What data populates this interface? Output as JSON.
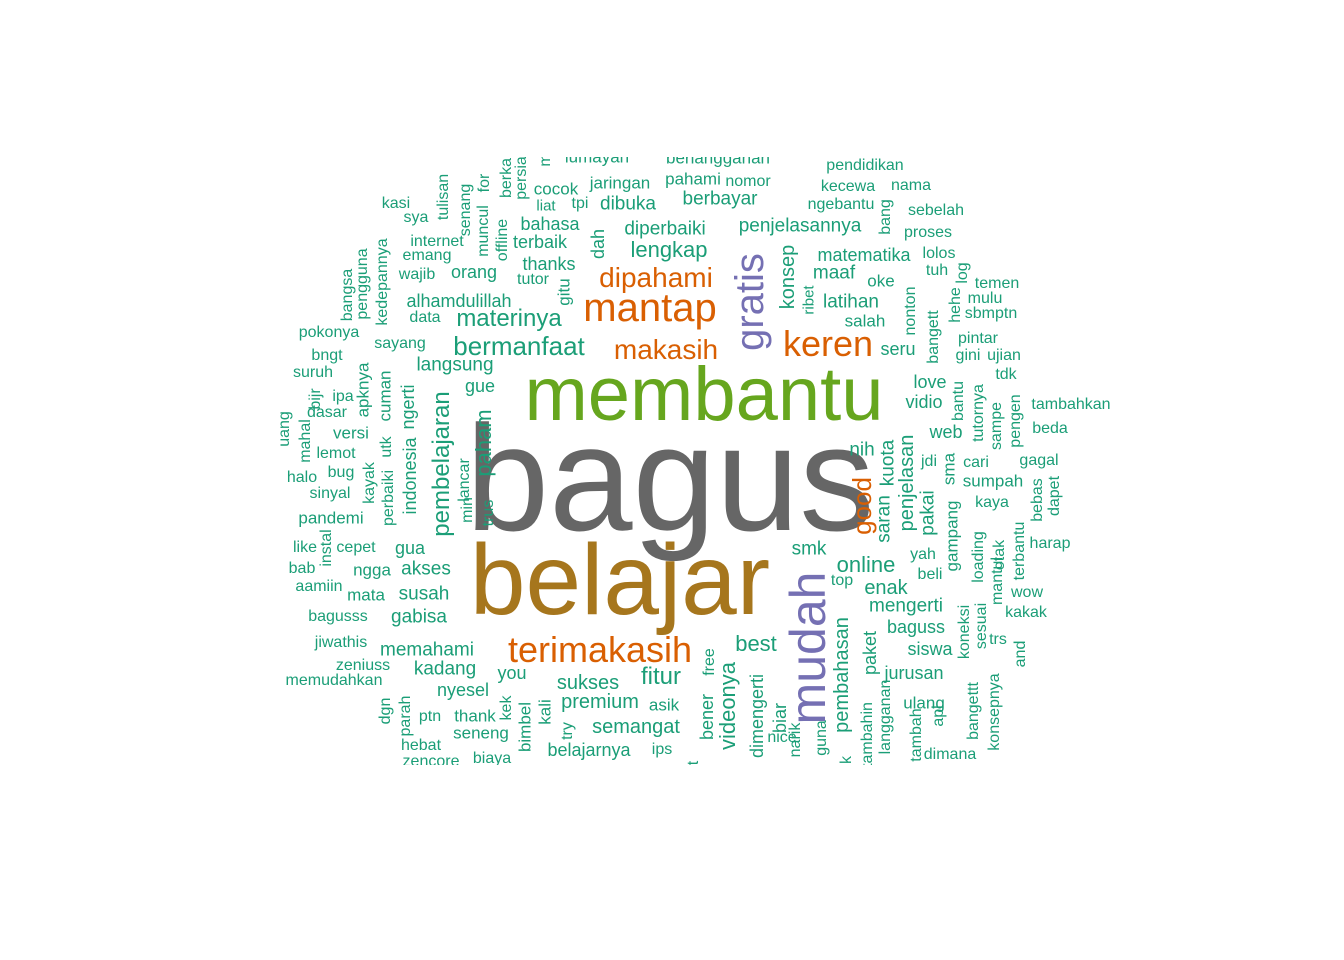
{
  "palette": {
    "teal": "#1b9e77",
    "orange": "#d95f02",
    "purple": "#7570b3",
    "green": "#66a61e",
    "olive": "#a6761d",
    "gray": "#666666"
  },
  "words": [
    {
      "text": "bagus",
      "color": "gray"
    },
    {
      "text": "belajar",
      "color": "olive"
    },
    {
      "text": "membantu",
      "color": "green"
    },
    {
      "text": "mudah",
      "color": "purple"
    },
    {
      "text": "gratis",
      "color": "purple"
    },
    {
      "text": "mantap",
      "color": "orange"
    },
    {
      "text": "terimakasih",
      "color": "orange"
    },
    {
      "text": "keren",
      "color": "orange"
    },
    {
      "text": "makasih",
      "color": "orange"
    },
    {
      "text": "dipahami",
      "color": "orange"
    },
    {
      "text": "good",
      "color": "orange"
    },
    {
      "text": "bermanfaat",
      "color": "teal"
    },
    {
      "text": "materinya",
      "color": "teal"
    },
    {
      "text": "lengkap",
      "color": "teal"
    },
    {
      "text": "pembelajaran",
      "color": "teal"
    },
    {
      "text": "fitur",
      "color": "teal"
    },
    {
      "text": "best",
      "color": "teal"
    },
    {
      "text": "online",
      "color": "teal"
    },
    {
      "text": "pembahasan",
      "color": "teal"
    },
    {
      "text": "videonya",
      "color": "teal"
    },
    {
      "text": "paham",
      "color": "teal"
    },
    {
      "text": "penjelasan",
      "color": "teal"
    },
    {
      "text": "semangat",
      "color": "teal"
    },
    {
      "text": "premium",
      "color": "teal"
    },
    {
      "text": "sukses",
      "color": "teal"
    },
    {
      "text": "enak",
      "color": "teal"
    },
    {
      "text": "konsep",
      "color": "teal"
    },
    {
      "text": "penjelasannya",
      "color": "teal"
    },
    {
      "text": "diperbaiki",
      "color": "teal"
    },
    {
      "text": "langsung",
      "color": "teal"
    },
    {
      "text": "memahami",
      "color": "teal"
    },
    {
      "text": "susah",
      "color": "teal"
    },
    {
      "text": "akses",
      "color": "teal"
    },
    {
      "text": "gabisa",
      "color": "teal"
    },
    {
      "text": "kadang",
      "color": "teal"
    },
    {
      "text": "mengerti",
      "color": "teal"
    },
    {
      "text": "latihan",
      "color": "teal"
    },
    {
      "text": "maaf",
      "color": "teal"
    },
    {
      "text": "nih",
      "color": "teal"
    },
    {
      "text": "smk",
      "color": "teal"
    },
    {
      "text": "kuota",
      "color": "teal"
    },
    {
      "text": "saran",
      "color": "teal"
    },
    {
      "text": "pakai",
      "color": "teal"
    },
    {
      "text": "matematika",
      "color": "teal"
    },
    {
      "text": "dibuka",
      "color": "teal"
    },
    {
      "text": "berbayar",
      "color": "teal"
    },
    {
      "text": "bahasa",
      "color": "teal"
    },
    {
      "text": "terbaik",
      "color": "teal"
    },
    {
      "text": "thanks",
      "color": "teal"
    },
    {
      "text": "orang",
      "color": "teal"
    },
    {
      "text": "alhamdulillah",
      "color": "teal"
    },
    {
      "text": "seru",
      "color": "teal"
    },
    {
      "text": "vidio",
      "color": "teal"
    },
    {
      "text": "web",
      "color": "teal"
    },
    {
      "text": "love",
      "color": "teal"
    },
    {
      "text": "gua",
      "color": "teal"
    },
    {
      "text": "gue",
      "color": "teal"
    },
    {
      "text": "indonesia",
      "color": "teal"
    },
    {
      "text": "ngerti",
      "color": "teal"
    },
    {
      "text": "dah",
      "color": "teal"
    },
    {
      "text": "gitu",
      "color": "teal"
    },
    {
      "text": "baguss",
      "color": "teal"
    },
    {
      "text": "jurusan",
      "color": "teal"
    },
    {
      "text": "paket",
      "color": "teal"
    },
    {
      "text": "siswa",
      "color": "teal"
    },
    {
      "text": "dimengerti",
      "color": "teal"
    },
    {
      "text": "bener",
      "color": "teal"
    },
    {
      "text": "biar",
      "color": "teal"
    },
    {
      "text": "nyesel",
      "color": "teal"
    },
    {
      "text": "belajarnya",
      "color": "teal"
    },
    {
      "text": "versi",
      "color": "teal"
    },
    {
      "text": "cuman",
      "color": "teal"
    },
    {
      "text": "apknya",
      "color": "teal"
    },
    {
      "text": "pandemi",
      "color": "teal"
    },
    {
      "text": "ngga",
      "color": "teal"
    },
    {
      "text": "mata",
      "color": "teal"
    },
    {
      "text": "salah",
      "color": "teal"
    },
    {
      "text": "oke",
      "color": "teal"
    },
    {
      "text": "sumpah",
      "color": "teal"
    },
    {
      "text": "sma",
      "color": "teal"
    },
    {
      "text": "gampang",
      "color": "teal"
    },
    {
      "text": "pahami",
      "color": "teal"
    },
    {
      "text": "jaringan",
      "color": "teal"
    },
    {
      "text": "cocok",
      "color": "teal"
    },
    {
      "text": "tutor",
      "color": "teal"
    },
    {
      "text": "you",
      "color": "teal"
    },
    {
      "text": "thank",
      "color": "teal"
    },
    {
      "text": "seneng",
      "color": "teal"
    },
    {
      "text": "bimbel",
      "color": "teal"
    },
    {
      "text": "kali",
      "color": "teal"
    },
    {
      "text": "asik",
      "color": "teal"
    },
    {
      "text": "top",
      "color": "teal"
    },
    {
      "text": "ulang",
      "color": "teal"
    },
    {
      "text": "beli",
      "color": "teal"
    },
    {
      "text": "yah",
      "color": "teal"
    },
    {
      "text": "kaya",
      "color": "teal"
    },
    {
      "text": "koneksi",
      "color": "teal"
    },
    {
      "text": "guna",
      "color": "teal"
    },
    {
      "text": "narik",
      "color": "teal"
    },
    {
      "text": "nice",
      "color": "teal"
    },
    {
      "text": "free",
      "color": "teal"
    },
    {
      "text": "ips",
      "color": "teal"
    },
    {
      "text": "try",
      "color": "teal"
    },
    {
      "text": "kek",
      "color": "teal"
    },
    {
      "text": "biaya",
      "color": "teal"
    },
    {
      "text": "trus",
      "color": "teal"
    },
    {
      "text": "lancar",
      "color": "teal"
    },
    {
      "text": "min",
      "color": "teal"
    },
    {
      "text": "perbaiki",
      "color": "teal"
    },
    {
      "text": "kayak",
      "color": "teal"
    },
    {
      "text": "utk",
      "color": "teal"
    },
    {
      "text": "sayang",
      "color": "teal"
    },
    {
      "text": "data",
      "color": "teal"
    },
    {
      "text": "wajib",
      "color": "teal"
    },
    {
      "text": "emang",
      "color": "teal"
    },
    {
      "text": "internet",
      "color": "teal"
    },
    {
      "text": "sya",
      "color": "teal"
    },
    {
      "text": "kasi",
      "color": "teal"
    },
    {
      "text": "tulisan",
      "color": "teal"
    },
    {
      "text": "senang",
      "color": "teal"
    },
    {
      "text": "muncul",
      "color": "teal"
    },
    {
      "text": "for",
      "color": "teal"
    },
    {
      "text": "offline",
      "color": "teal"
    },
    {
      "text": "berka",
      "color": "teal"
    },
    {
      "text": "persia",
      "color": "teal"
    },
    {
      "text": "m",
      "color": "teal"
    },
    {
      "text": "lumayan",
      "color": "teal"
    },
    {
      "text": "berlangganan",
      "color": "teal"
    },
    {
      "text": "tpi",
      "color": "teal"
    },
    {
      "text": "liat",
      "color": "teal"
    },
    {
      "text": "nomor",
      "color": "teal"
    },
    {
      "text": "ngebantu",
      "color": "teal"
    },
    {
      "text": "pendidikan",
      "color": "teal"
    },
    {
      "text": "kecewa",
      "color": "teal"
    },
    {
      "text": "nama",
      "color": "teal"
    },
    {
      "text": "sebelah",
      "color": "teal"
    },
    {
      "text": "proses",
      "color": "teal"
    },
    {
      "text": "bang",
      "color": "teal"
    },
    {
      "text": "lolos",
      "color": "teal"
    },
    {
      "text": "tuh",
      "color": "teal"
    },
    {
      "text": "log",
      "color": "teal"
    },
    {
      "text": "temen",
      "color": "teal"
    },
    {
      "text": "mulu",
      "color": "teal"
    },
    {
      "text": "hehe",
      "color": "teal"
    },
    {
      "text": "sbmptn",
      "color": "teal"
    },
    {
      "text": "pintar",
      "color": "teal"
    },
    {
      "text": "gini",
      "color": "teal"
    },
    {
      "text": "ujian",
      "color": "teal"
    },
    {
      "text": "tdk",
      "color": "teal"
    },
    {
      "text": "bangett",
      "color": "teal"
    },
    {
      "text": "nonton",
      "color": "teal"
    },
    {
      "text": "ribet",
      "color": "teal"
    },
    {
      "text": "bantu",
      "color": "teal"
    },
    {
      "text": "tutornya",
      "color": "teal"
    },
    {
      "text": "sampe",
      "color": "teal"
    },
    {
      "text": "pengen",
      "color": "teal"
    },
    {
      "text": "tambahkan",
      "color": "teal"
    },
    {
      "text": "beda",
      "color": "teal"
    },
    {
      "text": "jdi",
      "color": "teal"
    },
    {
      "text": "cari",
      "color": "teal"
    },
    {
      "text": "gagal",
      "color": "teal"
    },
    {
      "text": "bebas",
      "color": "teal"
    },
    {
      "text": "dapet",
      "color": "teal"
    },
    {
      "text": "harap",
      "color": "teal"
    },
    {
      "text": "terbantu",
      "color": "teal"
    },
    {
      "text": "loading",
      "color": "teal"
    },
    {
      "text": "sesuai",
      "color": "teal"
    },
    {
      "text": "mantul",
      "color": "teal"
    },
    {
      "text": "otak",
      "color": "teal"
    },
    {
      "text": "wow",
      "color": "teal"
    },
    {
      "text": "kakak",
      "color": "teal"
    },
    {
      "text": "trs",
      "color": "teal"
    },
    {
      "text": "and",
      "color": "teal"
    },
    {
      "text": "konsepnya",
      "color": "teal"
    },
    {
      "text": "bangettt",
      "color": "teal"
    },
    {
      "text": "apl",
      "color": "teal"
    },
    {
      "text": "dimana",
      "color": "teal"
    },
    {
      "text": "tambah",
      "color": "teal"
    },
    {
      "text": "langganan",
      "color": "teal"
    },
    {
      "text": "tambahin",
      "color": "teal"
    },
    {
      "text": "k",
      "color": "teal"
    },
    {
      "text": "t",
      "color": "teal"
    },
    {
      "text": "pengguna",
      "color": "teal"
    },
    {
      "text": "bangsa",
      "color": "teal"
    },
    {
      "text": "kedepannya",
      "color": "teal"
    },
    {
      "text": "pokonya",
      "color": "teal"
    },
    {
      "text": "bngt",
      "color": "teal"
    },
    {
      "text": "suruh",
      "color": "teal"
    },
    {
      "text": "bijr",
      "color": "teal"
    },
    {
      "text": "ipa",
      "color": "teal"
    },
    {
      "text": "dasar",
      "color": "teal"
    },
    {
      "text": "uang",
      "color": "teal"
    },
    {
      "text": "mahal",
      "color": "teal"
    },
    {
      "text": "lemot",
      "color": "teal"
    },
    {
      "text": "bug",
      "color": "teal"
    },
    {
      "text": "halo",
      "color": "teal"
    },
    {
      "text": "sinyal",
      "color": "teal"
    },
    {
      "text": "like",
      "color": "teal"
    },
    {
      "text": "cepet",
      "color": "teal"
    },
    {
      "text": "instal",
      "color": "teal"
    },
    {
      "text": "bab",
      "color": "teal"
    },
    {
      "text": "aamiin",
      "color": "teal"
    },
    {
      "text": "bagusss",
      "color": "teal"
    },
    {
      "text": "jiwathis",
      "color": "teal"
    },
    {
      "text": "zeniuss",
      "color": "teal"
    },
    {
      "text": "memudahkan",
      "color": "teal"
    },
    {
      "text": "dgn",
      "color": "teal"
    },
    {
      "text": "parah",
      "color": "teal"
    },
    {
      "text": "ptn",
      "color": "teal"
    },
    {
      "text": "hebat",
      "color": "teal"
    },
    {
      "text": "zencore",
      "color": "teal"
    }
  ]
}
